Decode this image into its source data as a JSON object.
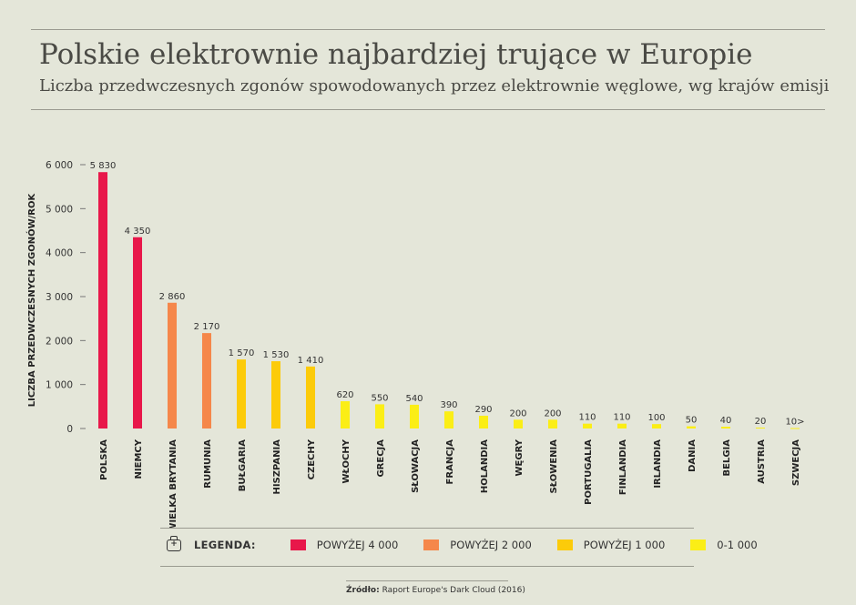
{
  "title": "Polskie elektrownie najbardziej trujące w Europie",
  "subtitle": "Liczba przedwczesnych zgonów spowodowanych przez elektrownie węglowe, wg krajów emisji",
  "legend": {
    "icon": "briefcase-plus-icon",
    "title": "LEGENDA:",
    "items": [
      {
        "label": "POWYŻEJ 4 000",
        "color": "#e8174a"
      },
      {
        "label": "POWYŻEJ 2 000",
        "color": "#f5874a"
      },
      {
        "label": "POWYŻEJ 1 000",
        "color": "#fccb0a"
      },
      {
        "label": "0-1 000",
        "color": "#fbee16"
      }
    ]
  },
  "source": {
    "label": "Źródło:",
    "text": "Raport Europe's Dark Cloud (2016)"
  },
  "chart_data": {
    "type": "bar",
    "ylabel": "LICZBA PRZEDWCZESNYCH ZGONÓW/ROK",
    "ylim": [
      0,
      6000
    ],
    "yticks": [
      0,
      1000,
      2000,
      3000,
      4000,
      5000,
      6000
    ],
    "ytick_labels": [
      "0",
      "1 000",
      "2 000",
      "3 000",
      "4 000",
      "5 000",
      "6 000"
    ],
    "categories": [
      "POLSKA",
      "NIEMCY",
      "WIELKA BRYTANIA",
      "RUMUNIA",
      "BUŁGARIA",
      "HISZPANIA",
      "CZECHY",
      "WŁOCHY",
      "GRECJA",
      "SŁOWACJA",
      "FRANCJA",
      "HOLANDIA",
      "WĘGRY",
      "SŁOWENIA",
      "PORTUGALIA",
      "FINLANDIA",
      "IRLANDIA",
      "DANIA",
      "BELGIA",
      "AUSTRIA",
      "SZWECJA"
    ],
    "values": [
      5830,
      4350,
      2860,
      2170,
      1570,
      1530,
      1410,
      620,
      550,
      540,
      390,
      290,
      200,
      200,
      110,
      110,
      100,
      50,
      40,
      20,
      10
    ],
    "value_labels": [
      "5 830",
      "4 350",
      "2 860",
      "2 170",
      "1 570",
      "1 530",
      "1 410",
      "620",
      "550",
      "540",
      "390",
      "290",
      "200",
      "200",
      "110",
      "110",
      "100",
      "50",
      "40",
      "20",
      "10>"
    ],
    "colors": [
      "#e8174a",
      "#e8174a",
      "#f5874a",
      "#f5874a",
      "#fccb0a",
      "#fccb0a",
      "#fccb0a",
      "#fbee16",
      "#fbee16",
      "#fbee16",
      "#fbee16",
      "#fbee16",
      "#fbee16",
      "#fbee16",
      "#fbee16",
      "#fbee16",
      "#fbee16",
      "#fbee16",
      "#fbee16",
      "#fbee16",
      "#fbee16"
    ],
    "grid": false
  }
}
